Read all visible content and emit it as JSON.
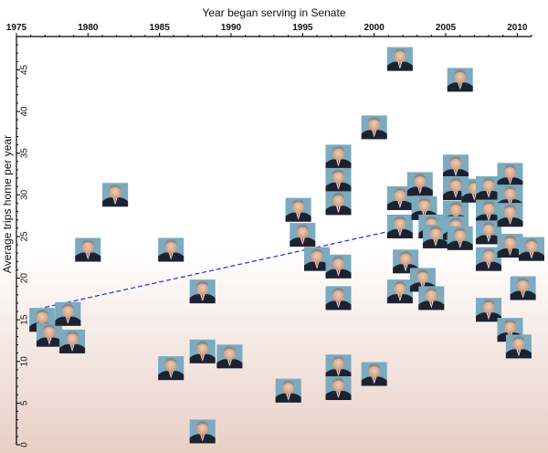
{
  "chart_data": {
    "type": "scatter",
    "title": "",
    "xlabel": "Year began serving in Senate",
    "ylabel": "Average trips home per year",
    "xlim": [
      1975,
      2011
    ],
    "ylim": [
      0,
      49
    ],
    "x_ticks": [
      1975,
      1980,
      1985,
      1990,
      1995,
      2000,
      2005,
      2010
    ],
    "x_tick_labels": [
      "1975",
      "1980",
      "1985",
      "1990",
      "1995",
      "2000",
      "2005",
      "2010"
    ],
    "y_ticks": [
      0,
      5,
      10,
      15,
      20,
      25,
      30,
      35,
      40,
      45
    ],
    "y_tick_labels": [
      "0",
      "5",
      "10",
      "15",
      "20",
      "25",
      "30",
      "35",
      "40",
      "45"
    ],
    "x_axis_position": "top",
    "grid": false,
    "marker": "senator-portrait-photo",
    "background": "white fading to pale red at the bottom",
    "colors": {
      "trend_line": "#1f2fd6",
      "axis": "#000000",
      "background_bottom": "#e8cfc6",
      "photo_backdrop": "#6a9fb5"
    },
    "trendline": {
      "style": "dashed",
      "points": [
        [
          1977,
          16.5
        ],
        [
          2001,
          25.6
        ]
      ]
    },
    "points": [
      {
        "x": 1976.8,
        "y": 15.0
      },
      {
        "x": 1977.3,
        "y": 13.2
      },
      {
        "x": 1978.6,
        "y": 15.7
      },
      {
        "x": 1978.9,
        "y": 12.4
      },
      {
        "x": 1980.0,
        "y": 23.4
      },
      {
        "x": 1981.9,
        "y": 30.0
      },
      {
        "x": 1985.8,
        "y": 23.4
      },
      {
        "x": 1985.8,
        "y": 9.2
      },
      {
        "x": 1988.0,
        "y": 18.4
      },
      {
        "x": 1988.0,
        "y": 11.2
      },
      {
        "x": 1989.9,
        "y": 10.6
      },
      {
        "x": 1988.0,
        "y": 1.6
      },
      {
        "x": 1994.0,
        "y": 6.5
      },
      {
        "x": 1994.7,
        "y": 28.2
      },
      {
        "x": 1995.0,
        "y": 25.2
      },
      {
        "x": 1996.0,
        "y": 22.3
      },
      {
        "x": 1997.5,
        "y": 34.6
      },
      {
        "x": 1997.5,
        "y": 31.8
      },
      {
        "x": 1997.5,
        "y": 29.0
      },
      {
        "x": 1997.5,
        "y": 21.4
      },
      {
        "x": 1997.5,
        "y": 17.6
      },
      {
        "x": 1997.5,
        "y": 9.4
      },
      {
        "x": 1997.5,
        "y": 6.8
      },
      {
        "x": 2000.0,
        "y": 38.1
      },
      {
        "x": 2000.0,
        "y": 8.5
      },
      {
        "x": 2001.8,
        "y": 46.3
      },
      {
        "x": 2001.8,
        "y": 29.6
      },
      {
        "x": 2001.8,
        "y": 26.2
      },
      {
        "x": 2002.2,
        "y": 22.0
      },
      {
        "x": 2001.8,
        "y": 18.4
      },
      {
        "x": 2003.4,
        "y": 19.8
      },
      {
        "x": 2003.2,
        "y": 31.3
      },
      {
        "x": 2003.5,
        "y": 28.4
      },
      {
        "x": 2004.0,
        "y": 26.2
      },
      {
        "x": 2004.0,
        "y": 17.6
      },
      {
        "x": 2004.3,
        "y": 25.0
      },
      {
        "x": 2005.7,
        "y": 33.4
      },
      {
        "x": 2005.7,
        "y": 30.8
      },
      {
        "x": 2005.7,
        "y": 27.9
      },
      {
        "x": 2005.7,
        "y": 26.0
      },
      {
        "x": 2006.0,
        "y": 24.8
      },
      {
        "x": 2006.0,
        "y": 43.8
      },
      {
        "x": 2007.0,
        "y": 30.5
      },
      {
        "x": 2008.0,
        "y": 30.8
      },
      {
        "x": 2008.0,
        "y": 28.0
      },
      {
        "x": 2008.0,
        "y": 25.5
      },
      {
        "x": 2008.0,
        "y": 22.3
      },
      {
        "x": 2008.0,
        "y": 16.2
      },
      {
        "x": 2009.5,
        "y": 32.4
      },
      {
        "x": 2009.5,
        "y": 29.8
      },
      {
        "x": 2009.5,
        "y": 27.6
      },
      {
        "x": 2009.5,
        "y": 23.9
      },
      {
        "x": 2009.5,
        "y": 13.8
      },
      {
        "x": 2010.4,
        "y": 18.8
      },
      {
        "x": 2010.1,
        "y": 11.8
      },
      {
        "x": 2011.0,
        "y": 23.5
      }
    ]
  }
}
